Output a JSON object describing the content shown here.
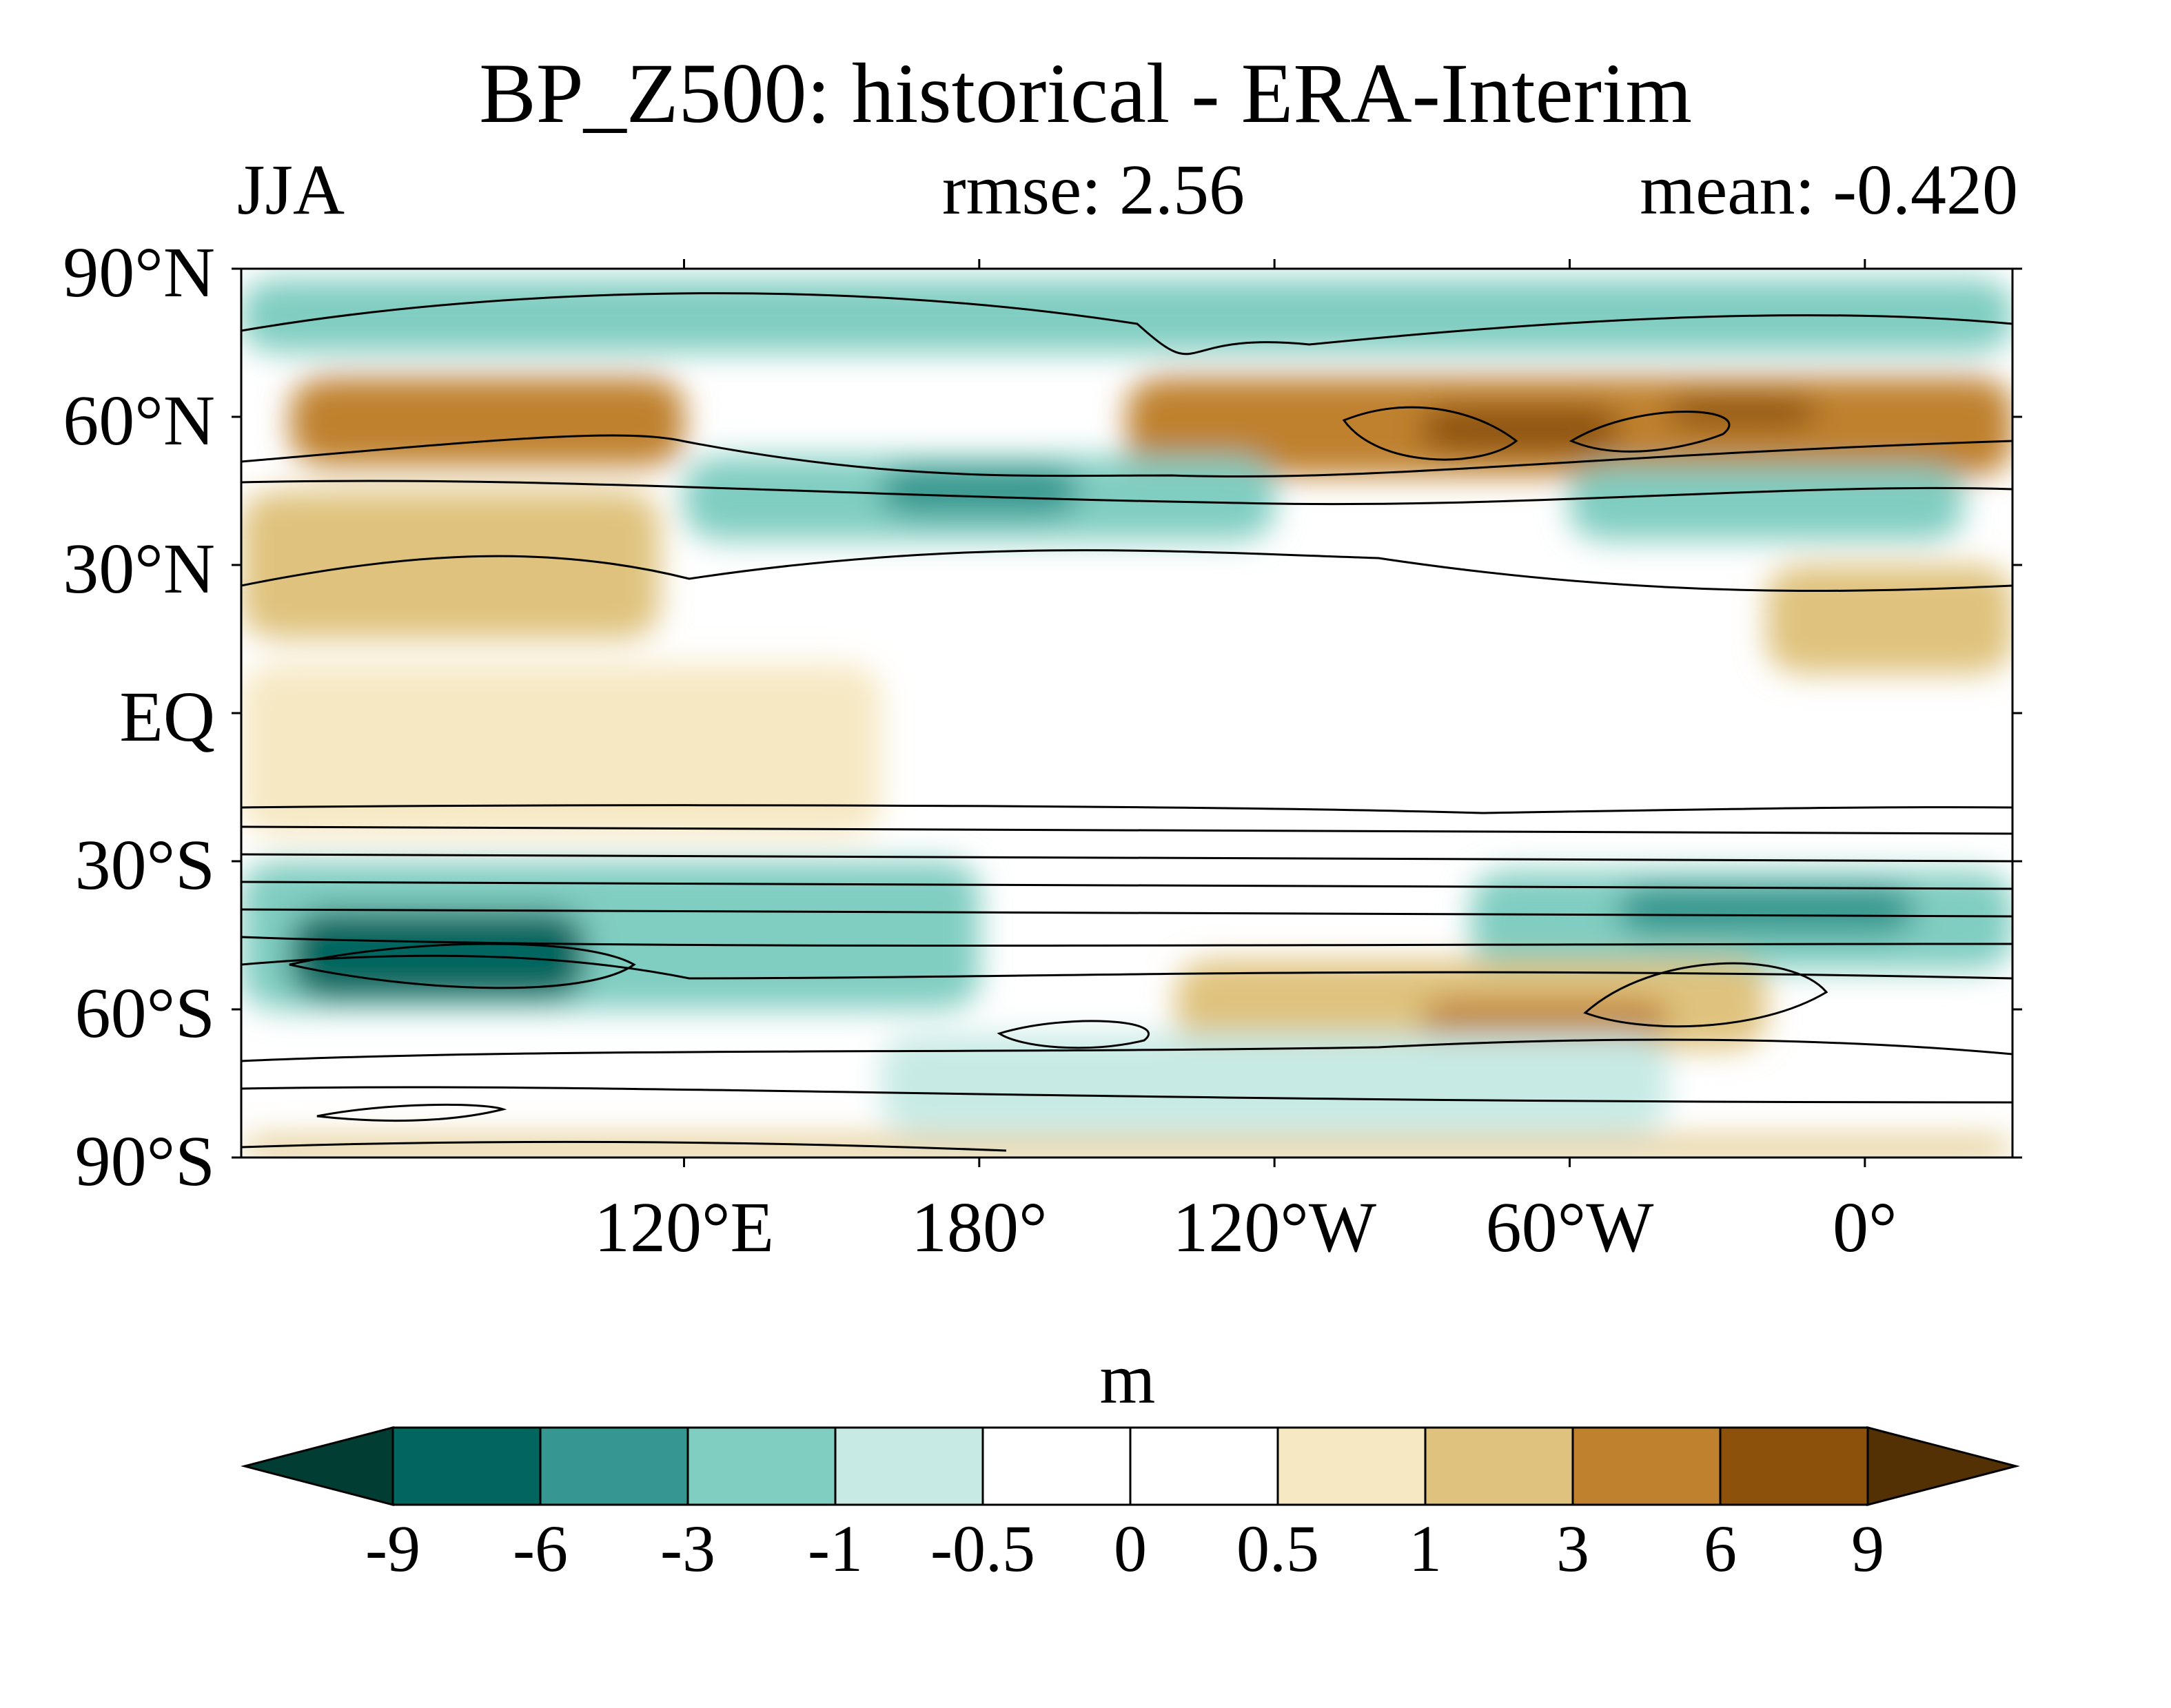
{
  "chart_data": {
    "type": "heatmap",
    "title": "BP_Z500: historical - ERA-Interim",
    "season": "JJA",
    "rmse_label": "rmse: 2.56",
    "mean_label": "mean: -0.420",
    "rmse": 2.56,
    "mean": -0.42,
    "projection": "cylindrical equidistant, centered 150°W",
    "lon_range": [
      -330,
      30
    ],
    "lat_range": [
      -90,
      90
    ],
    "y_ticks": [
      {
        "lat": 90,
        "label": "90°N"
      },
      {
        "lat": 60,
        "label": "60°N"
      },
      {
        "lat": 30,
        "label": "30°N"
      },
      {
        "lat": 0,
        "label": "EQ"
      },
      {
        "lat": -30,
        "label": "30°S"
      },
      {
        "lat": -60,
        "label": "60°S"
      },
      {
        "lat": -90,
        "label": "90°S"
      }
    ],
    "x_ticks": [
      {
        "lon": 120,
        "label": "120°E"
      },
      {
        "lon": 180,
        "label": "180°"
      },
      {
        "lon": -120,
        "label": "120°W"
      },
      {
        "lon": -60,
        "label": "60°W"
      },
      {
        "lon": 0,
        "label": "0°"
      }
    ],
    "colorbar": {
      "unit": "m",
      "levels": [
        -9,
        -6,
        -3,
        -1,
        -0.5,
        0,
        0.5,
        1,
        3,
        6,
        9
      ],
      "level_labels": [
        "-9",
        "-6",
        "-3",
        "-1",
        "-0.5",
        "0",
        "0.5",
        "1",
        "3",
        "6",
        "9"
      ],
      "colors": [
        "#023d33",
        "#00665e",
        "#35978f",
        "#80cdc1",
        "#c7eae5",
        "#ffffff",
        "#ffffff",
        "#f6e8c3",
        "#dfc27d",
        "#bf812d",
        "#8c510a",
        "#543005"
      ]
    },
    "regions": [
      {
        "lat": [
          73,
          88
        ],
        "lon": [
          -330,
          30
        ],
        "value": -3
      },
      {
        "lat": [
          50,
          68
        ],
        "lon": [
          -320,
          -240
        ],
        "value": 3
      },
      {
        "lat": [
          48,
          68
        ],
        "lon": [
          -150,
          30
        ],
        "value": 3
      },
      {
        "lat": [
          53,
          62
        ],
        "lon": [
          -90,
          -50
        ],
        "value": 6
      },
      {
        "lat": [
          58,
          64
        ],
        "lon": [
          -40,
          -10
        ],
        "value": 6
      },
      {
        "lat": [
          35,
          52
        ],
        "lon": [
          -240,
          -120
        ],
        "value": -3
      },
      {
        "lat": [
          40,
          50
        ],
        "lon": [
          -200,
          -160
        ],
        "value": -6
      },
      {
        "lat": [
          35,
          50
        ],
        "lon": [
          -60,
          20
        ],
        "value": -3
      },
      {
        "lat": [
          15,
          45
        ],
        "lon": [
          -330,
          -245
        ],
        "value": 1
      },
      {
        "lat": [
          8,
          30
        ],
        "lon": [
          -20,
          30
        ],
        "value": 1
      },
      {
        "lat": [
          -25,
          10
        ],
        "lon": [
          -330,
          -200
        ],
        "value": 0.5
      },
      {
        "lat": [
          -60,
          -30
        ],
        "lon": [
          -330,
          -180
        ],
        "value": -3
      },
      {
        "lat": [
          -58,
          -40
        ],
        "lon": [
          -320,
          -260
        ],
        "value": -9
      },
      {
        "lat": [
          -52,
          -32
        ],
        "lon": [
          -80,
          30
        ],
        "value": -3
      },
      {
        "lat": [
          -45,
          -35
        ],
        "lon": [
          -50,
          10
        ],
        "value": -6
      },
      {
        "lat": [
          -68,
          -50
        ],
        "lon": [
          -140,
          -20
        ],
        "value": 1
      },
      {
        "lat": [
          -66,
          -58
        ],
        "lon": [
          -90,
          -40
        ],
        "value": 3
      },
      {
        "lat": [
          -85,
          -65
        ],
        "lon": [
          -200,
          -40
        ],
        "value": -1
      },
      {
        "lat": [
          -90,
          -86
        ],
        "lon": [
          -330,
          30
        ],
        "value": 1
      }
    ]
  }
}
